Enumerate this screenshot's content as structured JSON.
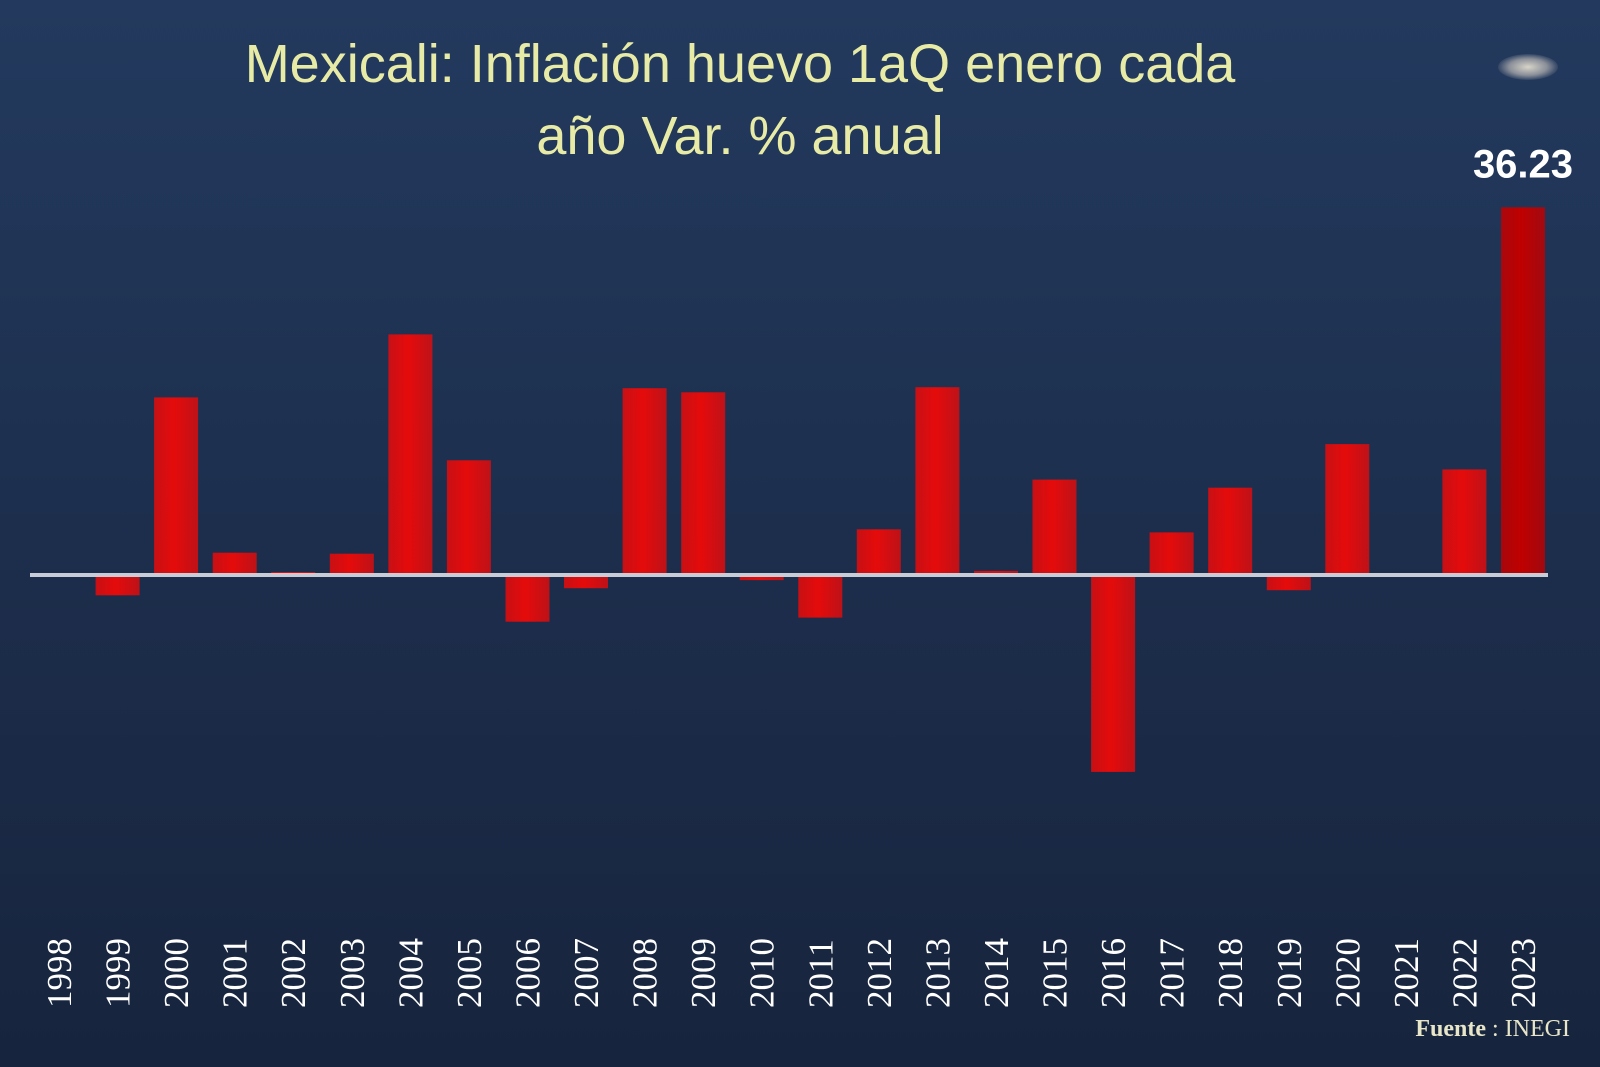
{
  "chart_data": {
    "type": "bar",
    "title": "Mexicali: Inflación huevo 1aQ enero cada año Var. % anual",
    "title_lines": [
      "Mexicali: Inflación huevo 1aQ enero cada",
      "año Var. % anual"
    ],
    "categories": [
      "1998",
      "1999",
      "2000",
      "2001",
      "2002",
      "2003",
      "2004",
      "2005",
      "2006",
      "2007",
      "2008",
      "2009",
      "2010",
      "2011",
      "2012",
      "2013",
      "2014",
      "2015",
      "2016",
      "2017",
      "2018",
      "2019",
      "2020",
      "2021",
      "2022",
      "2023"
    ],
    "values": [
      0.1,
      -2.0,
      17.5,
      2.2,
      0.3,
      2.1,
      23.7,
      11.3,
      -4.6,
      -1.3,
      18.4,
      18.0,
      -0.5,
      -4.2,
      4.5,
      18.5,
      0.4,
      9.4,
      -19.4,
      4.2,
      8.6,
      -1.5,
      12.9,
      0.0,
      10.4,
      36.23
    ],
    "data_labels": [
      {
        "category": "2023",
        "text": "36.23"
      }
    ],
    "xlabel": "",
    "ylabel": "",
    "ylim": [
      -20,
      40
    ],
    "grid": false,
    "legend": "none",
    "source_label": "Fuente",
    "source_sep": " : ",
    "source_value": "INEGI"
  },
  "colors": {
    "background": "#1f3150",
    "bar": "#e50b0b",
    "bar_highlight": "#c00000",
    "baseline": "#c8ccd6",
    "title": "#e8eba6",
    "label": "#ffffff"
  }
}
